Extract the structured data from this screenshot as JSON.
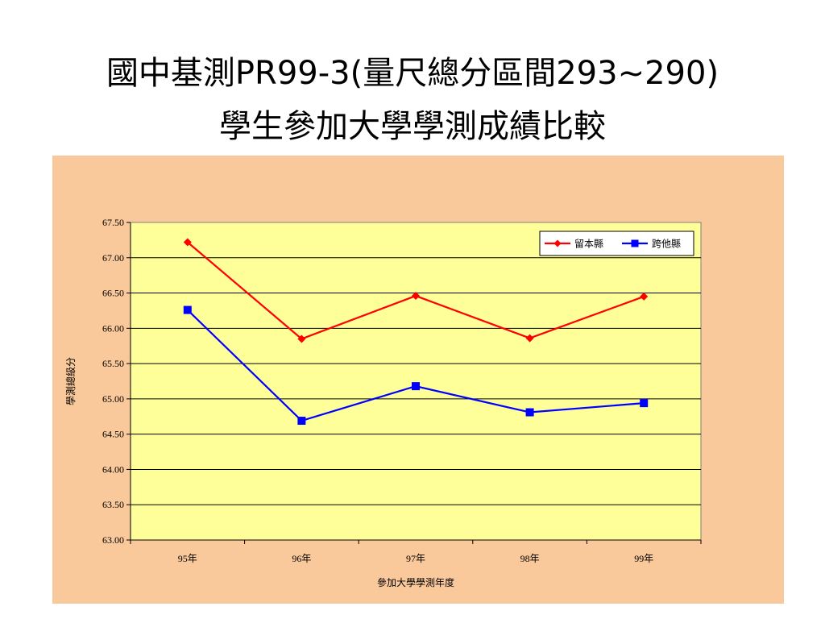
{
  "title": {
    "line1": "國中基測PR99-3(量尺總分區間293~290)",
    "line2": "學生參加大學學測成績比較"
  },
  "colors": {
    "background": "#fac99b",
    "plot": "#ffff99",
    "series1": "#ff0000",
    "series2": "#0000ff"
  },
  "chart_data": {
    "type": "line",
    "categories": [
      "95年",
      "96年",
      "97年",
      "98年",
      "99年"
    ],
    "series": [
      {
        "name": "留本縣",
        "values": [
          67.22,
          65.85,
          66.46,
          65.86,
          66.45
        ],
        "marker": "diamond",
        "color": "#ff0000"
      },
      {
        "name": "跨他縣",
        "values": [
          66.26,
          64.69,
          65.18,
          64.81,
          64.94
        ],
        "marker": "square",
        "color": "#0000ff"
      }
    ],
    "xlabel": "參加大學學測年度",
    "ylabel": "學測總級分",
    "ylim": [
      63.0,
      67.5
    ],
    "yticks": [
      "63.00",
      "63.50",
      "64.00",
      "64.50",
      "65.00",
      "65.50",
      "66.00",
      "66.50",
      "67.00",
      "67.50"
    ],
    "grid": true,
    "legend_position": "top-right"
  }
}
